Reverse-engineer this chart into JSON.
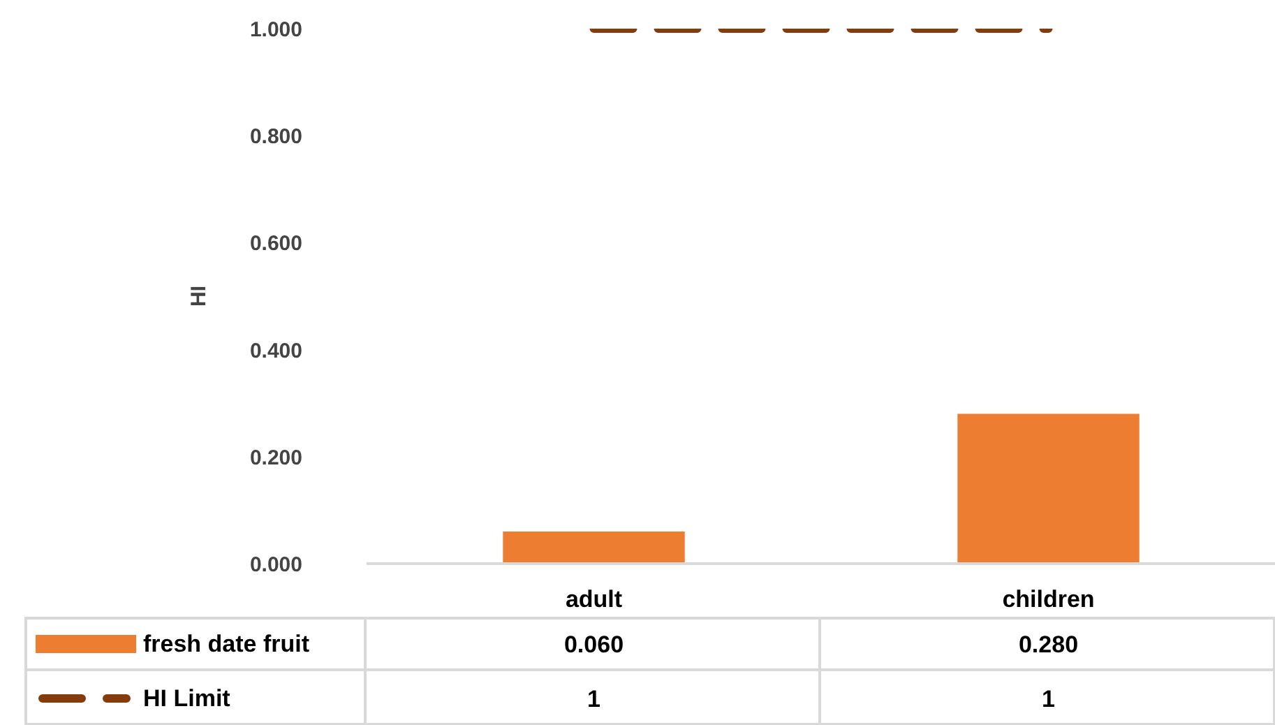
{
  "chart_data": {
    "type": "bar",
    "categories": [
      "adult",
      "children"
    ],
    "ylabel": "HI",
    "ylim": [
      0,
      1
    ],
    "yticks": [
      {
        "value": 0,
        "label": "0.000"
      },
      {
        "value": 0.2,
        "label": "0.200"
      },
      {
        "value": 0.4,
        "label": "0.400"
      },
      {
        "value": 0.6,
        "label": "0.600"
      },
      {
        "value": 0.8,
        "label": "0.800"
      },
      {
        "value": 1,
        "label": "1.000"
      }
    ],
    "grid": false,
    "legend": "bottom",
    "series": [
      {
        "name": "fresh date fruit",
        "color": "#ed7d31",
        "values": [
          0.06,
          0.28
        ],
        "value_labels": [
          "0.060",
          "0.280"
        ]
      },
      {
        "name": "HI Limit",
        "type": "line",
        "color": "#843c0c",
        "line_style": "dashed",
        "values": [
          1,
          1
        ],
        "value_labels": [
          "1",
          "1"
        ]
      }
    ]
  }
}
